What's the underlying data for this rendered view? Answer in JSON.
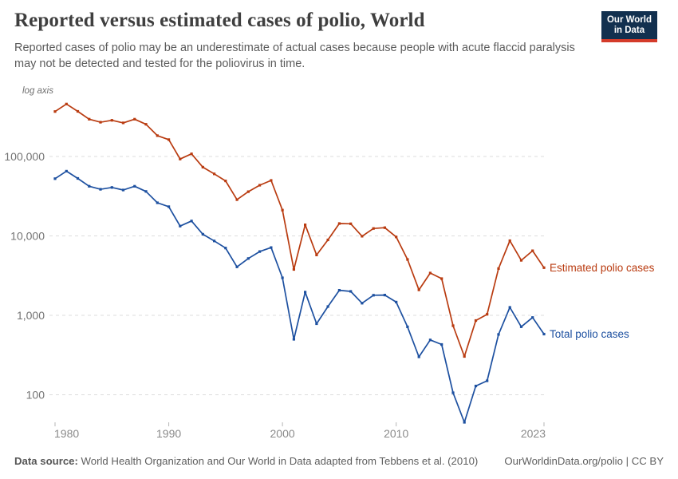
{
  "header": {
    "title": "Reported versus estimated cases of polio, World",
    "subtitle_line1": "Reported cases of polio may be an underestimate of actual cases because people with acute flaccid paralysis",
    "subtitle_line2": "may not be detected and tested for the poliovirus in time.",
    "logo": {
      "line1": "Our World",
      "line2": "in Data"
    }
  },
  "chart_data": {
    "type": "line",
    "title": "Reported versus estimated cases of polio, World",
    "yscale": "log",
    "axis_note": "log axis",
    "grid": "horizontal-dashed",
    "legend_position": "right-end-labels",
    "x_range": [
      1980,
      2023
    ],
    "x_ticks": [
      1980,
      1990,
      2000,
      2010,
      2023
    ],
    "x_tick_labels": [
      "1980",
      "1990",
      "2000",
      "2010",
      "2023"
    ],
    "y_ticks": [
      100000,
      10000,
      1000,
      100
    ],
    "y_tick_labels": [
      "100,000",
      "10,000",
      "1,000",
      "100"
    ],
    "years": [
      1980,
      1981,
      1982,
      1983,
      1984,
      1985,
      1986,
      1987,
      1988,
      1989,
      1990,
      1991,
      1992,
      1993,
      1994,
      1995,
      1996,
      1997,
      1998,
      1999,
      2000,
      2001,
      2002,
      2003,
      2004,
      2005,
      2006,
      2007,
      2008,
      2009,
      2010,
      2011,
      2012,
      2013,
      2014,
      2015,
      2016,
      2017,
      2018,
      2019,
      2020,
      2021,
      2022,
      2023
    ],
    "series": [
      {
        "name": "Estimated polio cases",
        "color": "#b93b10",
        "values": [
          368000,
          457000,
          370000,
          295000,
          270000,
          285000,
          265000,
          295000,
          254000,
          183000,
          163000,
          92900,
          108000,
          73400,
          60400,
          49200,
          28600,
          36000,
          43500,
          50000,
          21100,
          3780,
          13800,
          5750,
          8900,
          14300,
          14200,
          9900,
          12400,
          12700,
          9700,
          5050,
          2090,
          3410,
          2900,
          740,
          304,
          860,
          1030,
          3880,
          8710,
          4930,
          6500,
          3980
        ]
      },
      {
        "name": "Total polio cases",
        "color": "#1d50a0",
        "values": [
          52600,
          65300,
          52900,
          42200,
          38600,
          40700,
          37800,
          42200,
          36300,
          26100,
          23300,
          13300,
          15400,
          10500,
          8640,
          7040,
          4070,
          5190,
          6350,
          7140,
          2970,
          500,
          1960,
          784,
          1290,
          2070,
          2000,
          1420,
          1790,
          1800,
          1470,
          716,
          300,
          490,
          430,
          106,
          45,
          129,
          150,
          575,
          1260,
          719,
          940,
          580
        ]
      }
    ]
  },
  "footer": {
    "datasource_label": "Data source:",
    "datasource_text": " World Health Organization and Our World in Data adapted from Tebbens et al. (2010)",
    "link_text": "OurWorldinData.org/polio | CC BY"
  },
  "colors": {
    "estimated_series": "#b93b10",
    "total_series": "#1d50a0",
    "logo_background": "#12304f",
    "logo_accent": "#d43b2a",
    "gridline": "#dcdcdc",
    "axis_text": "#8a8a8a"
  }
}
